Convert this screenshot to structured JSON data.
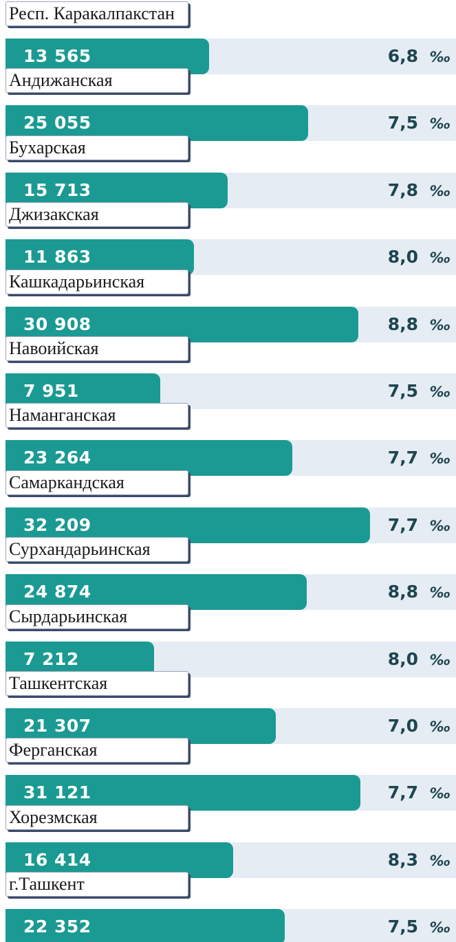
{
  "chart_data": {
    "type": "bar",
    "orientation": "horizontal",
    "color": "#1a9a92",
    "categories": [
      "Респ. Каракалпакстан",
      "Андижанская",
      "Бухарская",
      "Джизакская",
      "Кашкадарьинская",
      "Навоийская",
      "Наманганская",
      "Самаркандская",
      "Сурхандарьинская",
      "Сырдарьинская",
      "Ташкентская",
      "Ферганская",
      "Хорезмская",
      "г.Ташкент"
    ],
    "values": [
      13565,
      25055,
      15713,
      11863,
      30908,
      7951,
      23264,
      32209,
      24874,
      7212,
      21307,
      31121,
      16414,
      22352
    ],
    "value_labels": [
      "13 565",
      "25 055",
      "15 713",
      "11 863",
      "30 908",
      "7 951",
      "23 264",
      "32 209",
      "24 874",
      "7 212",
      "21 307",
      "31 121",
      "16 414",
      "22 352"
    ],
    "rates": [
      "6,8",
      "7,5",
      "7,8",
      "8,0",
      "8,8",
      "7,5",
      "7,7",
      "7,7",
      "8,8",
      "8,0",
      "7,0",
      "7,7",
      "8,3",
      "7,5"
    ],
    "rate_unit": "‰",
    "xlim": [
      -10000,
      34000
    ]
  }
}
